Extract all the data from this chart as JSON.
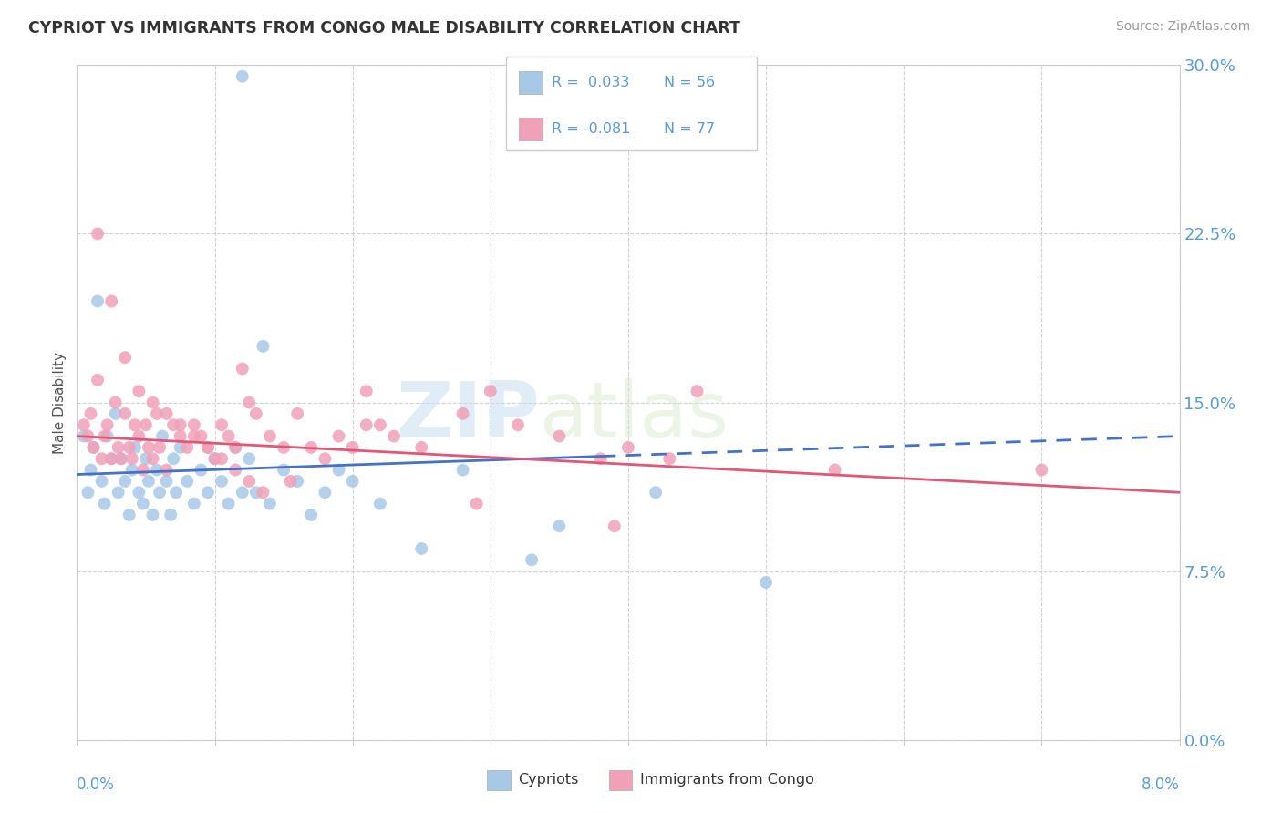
{
  "title": "CYPRIOT VS IMMIGRANTS FROM CONGO MALE DISABILITY CORRELATION CHART",
  "source": "Source: ZipAtlas.com",
  "ylabel": "Male Disability",
  "xlim": [
    0.0,
    8.0
  ],
  "ylim": [
    0.0,
    30.0
  ],
  "yticks": [
    0.0,
    7.5,
    15.0,
    22.5,
    30.0
  ],
  "xticks": [
    0.0,
    1.0,
    2.0,
    3.0,
    4.0,
    5.0,
    6.0,
    7.0,
    8.0
  ],
  "legend_r1": "R =  0.033",
  "legend_n1": "N = 56",
  "legend_r2": "R = -0.081",
  "legend_n2": "N = 77",
  "color_cypriot": "#a8c8e8",
  "color_congo": "#f0a0b8",
  "color_line_cypriot": "#4472c4",
  "color_line_congo": "#e05878",
  "color_axis_text": "#5b9bd5",
  "watermark_zip": "ZIP",
  "watermark_atlas": "atlas",
  "background_color": "#ffffff",
  "grid_color": "#cccccc",
  "cypriot_x": [
    0.05,
    0.08,
    0.1,
    0.12,
    0.15,
    0.18,
    0.2,
    0.22,
    0.25,
    0.28,
    0.3,
    0.32,
    0.35,
    0.38,
    0.4,
    0.42,
    0.45,
    0.48,
    0.5,
    0.52,
    0.55,
    0.58,
    0.6,
    0.62,
    0.65,
    0.68,
    0.7,
    0.72,
    0.75,
    0.8,
    0.85,
    0.9,
    0.95,
    1.0,
    1.05,
    1.1,
    1.15,
    1.2,
    1.25,
    1.3,
    1.4,
    1.5,
    1.6,
    1.7,
    1.8,
    1.9,
    2.0,
    2.2,
    2.5,
    3.3,
    3.5,
    4.2,
    5.0,
    1.2,
    1.35,
    2.8
  ],
  "cypriot_y": [
    13.5,
    11.0,
    12.0,
    13.0,
    19.5,
    11.5,
    10.5,
    13.5,
    12.5,
    14.5,
    11.0,
    12.5,
    11.5,
    10.0,
    12.0,
    13.0,
    11.0,
    10.5,
    12.5,
    11.5,
    10.0,
    12.0,
    11.0,
    13.5,
    11.5,
    10.0,
    12.5,
    11.0,
    13.0,
    11.5,
    10.5,
    12.0,
    11.0,
    12.5,
    11.5,
    10.5,
    13.0,
    11.0,
    12.5,
    11.0,
    10.5,
    12.0,
    11.5,
    10.0,
    11.0,
    12.0,
    11.5,
    10.5,
    8.5,
    8.0,
    9.5,
    11.0,
    7.0,
    29.5,
    17.5,
    12.0
  ],
  "congo_x": [
    0.05,
    0.08,
    0.1,
    0.12,
    0.15,
    0.18,
    0.2,
    0.22,
    0.25,
    0.28,
    0.3,
    0.32,
    0.35,
    0.38,
    0.4,
    0.42,
    0.45,
    0.48,
    0.5,
    0.52,
    0.55,
    0.58,
    0.6,
    0.65,
    0.7,
    0.75,
    0.8,
    0.85,
    0.9,
    0.95,
    1.0,
    1.05,
    1.1,
    1.15,
    1.2,
    1.25,
    1.3,
    1.4,
    1.5,
    1.6,
    1.7,
    1.8,
    1.9,
    2.0,
    2.1,
    2.2,
    2.3,
    2.5,
    2.8,
    3.0,
    3.2,
    3.5,
    3.8,
    4.0,
    4.3,
    4.5,
    5.5,
    0.15,
    0.25,
    0.35,
    0.45,
    0.55,
    0.65,
    0.75,
    0.85,
    0.95,
    1.05,
    1.15,
    1.25,
    1.35,
    1.55,
    2.1,
    7.0,
    2.9,
    3.9
  ],
  "congo_y": [
    14.0,
    13.5,
    14.5,
    13.0,
    16.0,
    12.5,
    13.5,
    14.0,
    12.5,
    15.0,
    13.0,
    12.5,
    14.5,
    13.0,
    12.5,
    14.0,
    13.5,
    12.0,
    14.0,
    13.0,
    12.5,
    14.5,
    13.0,
    12.0,
    14.0,
    13.5,
    13.0,
    14.0,
    13.5,
    13.0,
    12.5,
    14.0,
    13.5,
    13.0,
    16.5,
    15.0,
    14.5,
    13.5,
    13.0,
    14.5,
    13.0,
    12.5,
    13.5,
    13.0,
    15.5,
    14.0,
    13.5,
    13.0,
    14.5,
    15.5,
    14.0,
    13.5,
    12.5,
    13.0,
    12.5,
    15.5,
    12.0,
    22.5,
    19.5,
    17.0,
    15.5,
    15.0,
    14.5,
    14.0,
    13.5,
    13.0,
    12.5,
    12.0,
    11.5,
    11.0,
    11.5,
    14.0,
    12.0,
    10.5,
    9.5
  ],
  "line_cyp_x0": 0.0,
  "line_cyp_y0": 11.8,
  "line_cyp_x1": 8.0,
  "line_cyp_y1": 13.5,
  "line_cyp_dash_start": 3.8,
  "line_congo_x0": 0.0,
  "line_congo_y0": 13.5,
  "line_congo_x1": 8.0,
  "line_congo_y1": 11.0
}
